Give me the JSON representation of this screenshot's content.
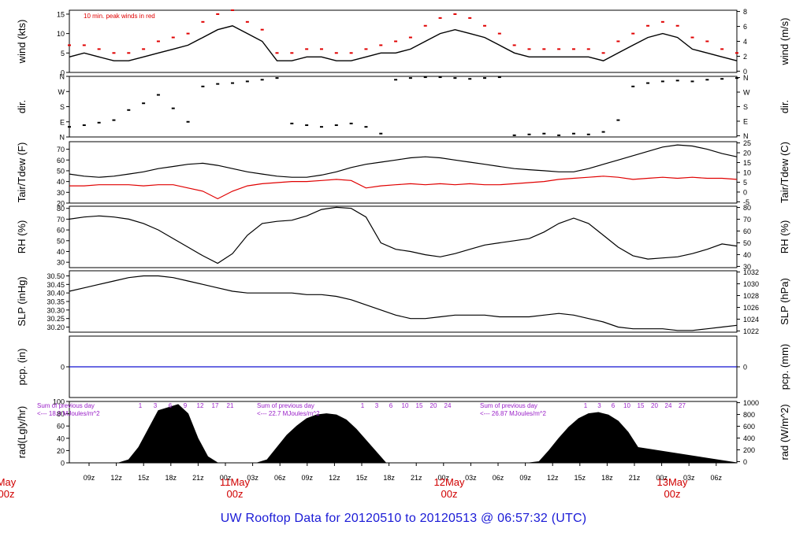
{
  "footer": {
    "prefix": "UW Rooftop Data for",
    "start": "20120510",
    "to": "to",
    "end": "20120513",
    "at": "@",
    "time": "06:57:32",
    "tz": "(UTC)"
  },
  "colors": {
    "axis": "#000000",
    "peak": "#e00000",
    "dewpoint": "#e00000",
    "precip": "#1010d0",
    "day_label": "#d00000",
    "annotation": "#9a20c8",
    "title": "#1a1ad6"
  },
  "chart_data": [
    {
      "type": "line",
      "id": "wind",
      "ylabel_left": "wind (kts)",
      "ylabel_right": "wind (m/s)",
      "ylim": [
        0,
        16
      ],
      "yticks_left": [
        0,
        5,
        10,
        15
      ],
      "yticks_right": [
        "0",
        "2",
        "4",
        "6",
        "8"
      ],
      "annotation": "10 min. peak winds in red",
      "series": [
        {
          "role": "speed",
          "color": "#000000",
          "x": [
            0,
            3,
            6,
            9,
            12,
            15,
            18,
            21,
            24,
            27,
            30,
            33,
            36,
            39,
            42,
            45,
            48,
            51,
            54,
            57,
            60,
            63,
            66,
            69,
            72,
            75,
            78,
            81,
            84,
            87,
            90,
            93,
            96,
            99,
            102,
            105,
            108,
            111,
            114,
            117,
            120,
            123,
            126,
            129,
            132,
            135
          ],
          "values": [
            4,
            5,
            4,
            3,
            3,
            4,
            5,
            6,
            7,
            9,
            11,
            12,
            10,
            8,
            3,
            3,
            4,
            4,
            3,
            3,
            4,
            5,
            5,
            6,
            8,
            10,
            11,
            10,
            9,
            7,
            5,
            4,
            4,
            4,
            4,
            4,
            3,
            5,
            7,
            9,
            10,
            9,
            6,
            5,
            4,
            3
          ]
        },
        {
          "role": "peak",
          "color": "#e00000",
          "x": [
            0,
            3,
            6,
            9,
            12,
            15,
            18,
            21,
            24,
            27,
            30,
            33,
            36,
            39,
            42,
            45,
            48,
            51,
            54,
            57,
            60,
            63,
            66,
            69,
            72,
            75,
            78,
            81,
            84,
            87,
            90,
            93,
            96,
            99,
            102,
            105,
            108,
            111,
            114,
            117,
            120,
            123,
            126,
            129,
            132,
            135
          ],
          "values": [
            7,
            7,
            6,
            5,
            5,
            6,
            8,
            9,
            10,
            13,
            15,
            16,
            13,
            11,
            5,
            5,
            6,
            6,
            5,
            5,
            6,
            7,
            8,
            9,
            12,
            14,
            15,
            14,
            12,
            10,
            7,
            6,
            6,
            6,
            6,
            6,
            5,
            8,
            10,
            12,
            13,
            12,
            9,
            8,
            6,
            5
          ]
        }
      ]
    },
    {
      "type": "scatter",
      "id": "direction",
      "ylabel_left": "dir.",
      "ylabel_right": "dir.",
      "ylim": [
        0,
        360
      ],
      "yticks_left": [
        "N",
        "E",
        "S",
        "W",
        "N"
      ],
      "yticks_right": [
        "N",
        "E",
        "S",
        "W",
        "N"
      ],
      "series": [
        {
          "role": "direction",
          "color": "#000000",
          "x": [
            0,
            3,
            6,
            9,
            12,
            15,
            18,
            21,
            24,
            27,
            30,
            33,
            36,
            39,
            42,
            45,
            48,
            51,
            54,
            57,
            60,
            63,
            66,
            69,
            72,
            75,
            78,
            81,
            84,
            87,
            90,
            93,
            96,
            99,
            102,
            105,
            108,
            111,
            114,
            117,
            120,
            123,
            126,
            129,
            132,
            135
          ],
          "values": [
            60,
            70,
            85,
            100,
            160,
            200,
            250,
            170,
            90,
            300,
            315,
            320,
            330,
            340,
            350,
            80,
            70,
            60,
            70,
            80,
            60,
            20,
            340,
            350,
            355,
            355,
            350,
            345,
            350,
            355,
            10,
            15,
            20,
            10,
            20,
            15,
            30,
            100,
            300,
            320,
            330,
            335,
            330,
            340,
            345,
            350
          ]
        }
      ]
    },
    {
      "type": "line",
      "id": "temperature",
      "ylabel_left": "Tair/Tdew (F)",
      "ylabel_right": "Tair/Tdew (C)",
      "ylim": [
        20,
        77
      ],
      "yticks_left": [
        20,
        30,
        40,
        50,
        60,
        70
      ],
      "yticks_right": [
        "-5",
        "0",
        "5",
        "10",
        "15",
        "20",
        "25"
      ],
      "series": [
        {
          "role": "air temperature",
          "color": "#000000",
          "x": [
            0,
            3,
            6,
            9,
            12,
            15,
            18,
            21,
            24,
            27,
            30,
            33,
            36,
            39,
            42,
            45,
            48,
            51,
            54,
            57,
            60,
            63,
            66,
            69,
            72,
            75,
            78,
            81,
            84,
            87,
            90,
            93,
            96,
            99,
            102,
            105,
            108,
            111,
            114,
            117,
            120,
            123,
            126,
            129,
            132,
            135
          ],
          "values": [
            47,
            45,
            44,
            45,
            47,
            49,
            52,
            54,
            56,
            57,
            55,
            52,
            49,
            47,
            45,
            44,
            44,
            46,
            49,
            53,
            56,
            58,
            60,
            62,
            63,
            62,
            60,
            58,
            56,
            54,
            52,
            51,
            50,
            49,
            49,
            52,
            56,
            60,
            64,
            68,
            72,
            74,
            73,
            70,
            66,
            63
          ]
        },
        {
          "role": "dew point",
          "color": "#e00000",
          "x": [
            0,
            3,
            6,
            9,
            12,
            15,
            18,
            21,
            24,
            27,
            30,
            33,
            36,
            39,
            42,
            45,
            48,
            51,
            54,
            57,
            60,
            63,
            66,
            69,
            72,
            75,
            78,
            81,
            84,
            87,
            90,
            93,
            96,
            99,
            102,
            105,
            108,
            111,
            114,
            117,
            120,
            123,
            126,
            129,
            132,
            135
          ],
          "values": [
            36,
            36,
            37,
            37,
            37,
            36,
            37,
            37,
            34,
            31,
            24,
            31,
            36,
            38,
            39,
            40,
            40,
            41,
            42,
            41,
            34,
            36,
            37,
            38,
            37,
            38,
            37,
            38,
            37,
            37,
            38,
            39,
            40,
            42,
            43,
            44,
            45,
            44,
            42,
            43,
            44,
            43,
            44,
            43,
            43,
            42
          ]
        }
      ]
    },
    {
      "type": "line",
      "id": "humidity",
      "ylabel_left": "RH (%)",
      "ylabel_right": "RH (%)",
      "ylim": [
        25,
        82
      ],
      "yticks_left": [
        30,
        40,
        50,
        60,
        70,
        80
      ],
      "yticks_right": [
        "30",
        "40",
        "50",
        "60",
        "70",
        "80"
      ],
      "series": [
        {
          "role": "relative humidity",
          "color": "#000000",
          "x": [
            0,
            3,
            6,
            9,
            12,
            15,
            18,
            21,
            24,
            27,
            30,
            33,
            36,
            39,
            42,
            45,
            48,
            51,
            54,
            57,
            60,
            63,
            66,
            69,
            72,
            75,
            78,
            81,
            84,
            87,
            90,
            93,
            96,
            99,
            102,
            105,
            108,
            111,
            114,
            117,
            120,
            123,
            126,
            129,
            132,
            135
          ],
          "values": [
            70,
            72,
            73,
            72,
            70,
            66,
            60,
            52,
            44,
            36,
            29,
            38,
            55,
            66,
            68,
            69,
            73,
            79,
            81,
            80,
            72,
            48,
            42,
            40,
            37,
            35,
            38,
            42,
            46,
            48,
            50,
            52,
            58,
            66,
            71,
            66,
            55,
            44,
            36,
            33,
            34,
            35,
            38,
            42,
            47,
            45
          ]
        }
      ]
    },
    {
      "type": "line",
      "id": "pressure",
      "ylabel_left": "SLP (inHg)",
      "ylabel_right": "SLP (hPa)",
      "ylim": [
        30.17,
        30.53
      ],
      "yticks_left": [
        "30.20",
        "30.25",
        "30.30",
        "30.35",
        "30.40",
        "30.45",
        "30.50"
      ],
      "yticks_right": [
        "1022",
        "1024",
        "1026",
        "1028",
        "1030",
        "1032"
      ],
      "series": [
        {
          "role": "sea level pressure",
          "color": "#000000",
          "x": [
            0,
            3,
            6,
            9,
            12,
            15,
            18,
            21,
            24,
            27,
            30,
            33,
            36,
            39,
            42,
            45,
            48,
            51,
            54,
            57,
            60,
            63,
            66,
            69,
            72,
            75,
            78,
            81,
            84,
            87,
            90,
            93,
            96,
            99,
            102,
            105,
            108,
            111,
            114,
            117,
            120,
            123,
            126,
            129,
            132,
            135
          ],
          "values": [
            30.41,
            30.43,
            30.45,
            30.47,
            30.49,
            30.5,
            30.5,
            30.49,
            30.47,
            30.45,
            30.43,
            30.41,
            30.4,
            30.4,
            30.4,
            30.4,
            30.39,
            30.39,
            30.38,
            30.36,
            30.33,
            30.3,
            30.27,
            30.25,
            30.25,
            30.26,
            30.27,
            30.27,
            30.27,
            30.26,
            30.26,
            30.26,
            30.27,
            30.28,
            30.27,
            30.25,
            30.23,
            30.2,
            30.19,
            30.19,
            30.19,
            30.18,
            30.18,
            30.19,
            30.2,
            30.21
          ]
        }
      ]
    },
    {
      "type": "line",
      "id": "precip",
      "ylabel_left": "pcp. (in)",
      "ylabel_right": "pcp. (mm)",
      "ylim": [
        -1,
        1
      ],
      "yticks_left": [
        0
      ],
      "yticks_right": [
        "0"
      ],
      "series": [
        {
          "role": "precipitation",
          "color": "#1010d0",
          "x": [
            0,
            135
          ],
          "values": [
            0,
            0
          ]
        }
      ]
    },
    {
      "type": "area",
      "id": "radiation",
      "ylabel_left": "rad(Lgly/hr)",
      "ylabel_right": "rad (W/m^2)",
      "ylim": [
        0,
        100
      ],
      "yticks_left": [
        0,
        20,
        40,
        60,
        80,
        100
      ],
      "yticks_right": [
        "0",
        "200",
        "400",
        "600",
        "800",
        "1000"
      ],
      "daily_sums": [
        {
          "line1": "Sum of previous day",
          "line2": "<--- 18.0 MJoules/m^2"
        },
        {
          "line1": "Sum of previous day",
          "line2": "<--- 22.7 MJoules/m^2"
        },
        {
          "line1": "Sum of previous day",
          "line2": "<--- 26.87 MJoules/m^2"
        }
      ],
      "hour_marks": [
        {
          "day": 0,
          "labels": [
            "1",
            "3",
            "6",
            "9",
            "12",
            "17",
            "21"
          ]
        },
        {
          "day": 1,
          "labels": [
            "1",
            "3",
            "6",
            "10",
            "15",
            "20",
            "24"
          ]
        },
        {
          "day": 2,
          "labels": [
            "1",
            "3",
            "6",
            "10",
            "15",
            "20",
            "24",
            "27"
          ]
        }
      ],
      "series": [
        {
          "role": "solar radiation",
          "color": "#000000",
          "x": [
            0,
            10,
            12,
            14,
            16,
            18,
            20,
            22,
            24,
            26,
            28,
            30,
            36,
            38,
            40,
            42,
            44,
            46,
            48,
            50,
            52,
            54,
            56,
            58,
            64,
            66,
            68,
            70,
            72,
            74,
            76,
            78,
            80,
            82,
            84,
            86,
            93,
            95,
            97,
            99,
            101,
            103,
            105,
            107,
            109,
            111,
            113,
            115,
            135
          ],
          "values": [
            0,
            0,
            5,
            25,
            55,
            85,
            90,
            95,
            80,
            40,
            10,
            0,
            0,
            0,
            5,
            25,
            45,
            60,
            72,
            78,
            80,
            78,
            70,
            55,
            0,
            0,
            0,
            0,
            0,
            0,
            0,
            0,
            0,
            0,
            0,
            0,
            0,
            2,
            20,
            40,
            58,
            72,
            80,
            82,
            78,
            68,
            50,
            25,
            0
          ]
        }
      ]
    }
  ],
  "time_axis": {
    "ticks": [
      "09z",
      "12z",
      "15z",
      "18z",
      "21z",
      "00z",
      "03z",
      "06z",
      "09z",
      "12z",
      "15z",
      "18z",
      "21z",
      "00z",
      "03z",
      "06z",
      "09z",
      "12z",
      "15z",
      "18z",
      "21z",
      "00z",
      "03z",
      "06z"
    ],
    "days": [
      {
        "date": "May",
        "hour": "00z"
      },
      {
        "date": "11May",
        "hour": "00z"
      },
      {
        "date": "12May",
        "hour": "00z"
      },
      {
        "date": "13May",
        "hour": "00z"
      }
    ]
  }
}
